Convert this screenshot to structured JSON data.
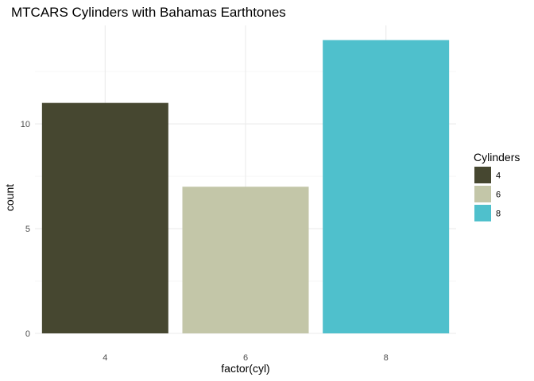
{
  "chart_data": {
    "type": "bar",
    "title": "MTCARS Cylinders with Bahamas Earthtones",
    "xlabel": "factor(cyl)",
    "ylabel": "count",
    "categories": [
      "4",
      "6",
      "8"
    ],
    "values": [
      11,
      7,
      14
    ],
    "colors": [
      "#464730",
      "#c3c6a8",
      "#4fc0cc"
    ],
    "ylim": [
      0,
      14.7
    ],
    "yticks": [
      0,
      5,
      10
    ],
    "yminor": [
      2.5,
      7.5,
      12.5
    ],
    "grid": true,
    "legend": {
      "title": "Cylinders",
      "placement": "right",
      "entries": [
        "4",
        "6",
        "8"
      ]
    }
  }
}
